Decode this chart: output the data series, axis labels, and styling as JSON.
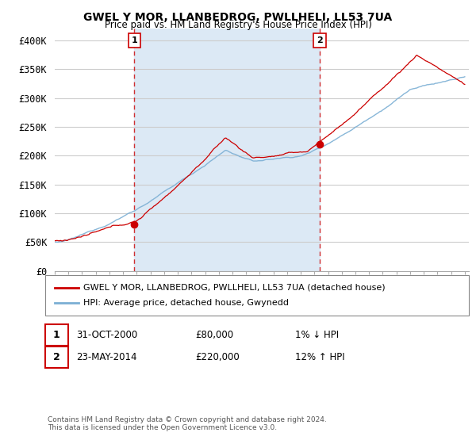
{
  "title": "GWEL Y MOR, LLANBEDROG, PWLLHELI, LL53 7UA",
  "subtitle": "Price paid vs. HM Land Registry's House Price Index (HPI)",
  "ylim": [
    0,
    420000
  ],
  "yticks": [
    0,
    50000,
    100000,
    150000,
    200000,
    250000,
    300000,
    350000,
    400000
  ],
  "ytick_labels": [
    "£0",
    "£50K",
    "£100K",
    "£150K",
    "£200K",
    "£250K",
    "£300K",
    "£350K",
    "£400K"
  ],
  "background_color": "#ffffff",
  "plot_bg_color": "#ffffff",
  "shaded_bg_color": "#dce9f5",
  "grid_color": "#cccccc",
  "legend_label_red": "GWEL Y MOR, LLANBEDROG, PWLLHELI, LL53 7UA (detached house)",
  "legend_label_blue": "HPI: Average price, detached house, Gwynedd",
  "red_color": "#cc0000",
  "blue_color": "#7bafd4",
  "marker1_year": 2000.83,
  "marker1_value": 80000,
  "marker1_label": "1",
  "marker2_year": 2014.4,
  "marker2_value": 220000,
  "marker2_label": "2",
  "annotation1_date": "31-OCT-2000",
  "annotation1_price": "£80,000",
  "annotation1_hpi": "1% ↓ HPI",
  "annotation2_date": "23-MAY-2014",
  "annotation2_price": "£220,000",
  "annotation2_hpi": "12% ↑ HPI",
  "footer": "Contains HM Land Registry data © Crown copyright and database right 2024.\nThis data is licensed under the Open Government Licence v3.0."
}
